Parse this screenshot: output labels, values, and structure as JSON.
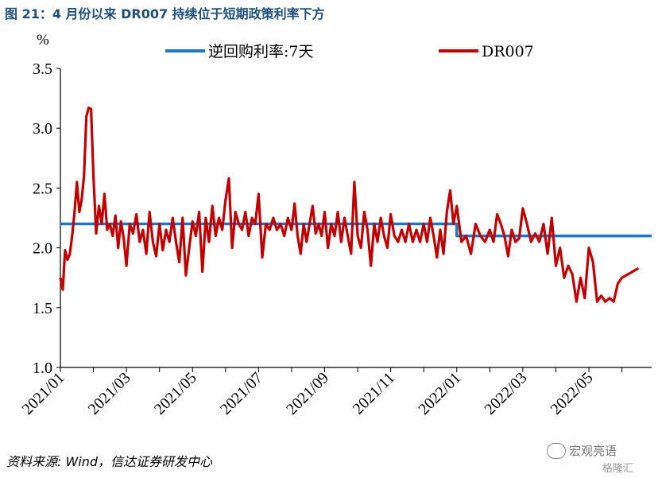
{
  "title": "图 21：4 月份以来 DR007 持续位于短期政策利率下方",
  "source": "资料来源: Wind，信达证券研发中心",
  "watermark": {
    "text": "宏观亮语",
    "logo": "格隆汇"
  },
  "chart_data": {
    "type": "line",
    "unit": "%",
    "ylim": [
      1.0,
      3.5
    ],
    "yticks": [
      "1.0",
      "1.5",
      "2.0",
      "2.5",
      "3.0",
      "3.5"
    ],
    "xticks": [
      "2021/01",
      "2021/03",
      "2021/05",
      "2021/07",
      "2021/09",
      "2021/11",
      "2022/01",
      "2022/03",
      "2022/05"
    ],
    "xrange": [
      "2021/01",
      "2022/06"
    ],
    "legend_position": "top",
    "grid": false,
    "series": [
      {
        "name": "逆回购利率:7天",
        "color": "#1f77c4",
        "points": [
          [
            "2021/01",
            2.2
          ],
          [
            "2022/01",
            2.2
          ],
          [
            "2022/01",
            2.1
          ],
          [
            "2022/06",
            2.1
          ]
        ]
      },
      {
        "name": "DR007",
        "color": "#c00000",
        "points": [
          [
            "2021/01",
            1.75
          ],
          [
            "2021/01",
            1.65
          ],
          [
            "2021/01",
            1.98
          ],
          [
            "2021/01",
            1.9
          ],
          [
            "2021/01",
            1.95
          ],
          [
            "2021/01",
            2.1
          ],
          [
            "2021/01",
            2.3
          ],
          [
            "2021/01",
            2.55
          ],
          [
            "2021/01",
            2.3
          ],
          [
            "2021/01",
            2.4
          ],
          [
            "2021/01",
            2.6
          ],
          [
            "2021/01",
            3.1
          ],
          [
            "2021/01",
            3.17
          ],
          [
            "2021/01",
            3.16
          ],
          [
            "2021/02",
            2.6
          ],
          [
            "2021/02",
            2.12
          ],
          [
            "2021/02",
            2.35
          ],
          [
            "2021/02",
            2.2
          ],
          [
            "2021/02",
            2.45
          ],
          [
            "2021/02",
            2.15
          ],
          [
            "2021/02",
            2.2
          ],
          [
            "2021/02",
            2.1
          ],
          [
            "2021/02",
            2.27
          ],
          [
            "2021/02",
            2.0
          ],
          [
            "2021/02",
            2.22
          ],
          [
            "2021/02",
            2.08
          ],
          [
            "2021/03",
            1.85
          ],
          [
            "2021/03",
            2.2
          ],
          [
            "2021/03",
            2.12
          ],
          [
            "2021/03",
            2.28
          ],
          [
            "2021/03",
            2.05
          ],
          [
            "2021/03",
            2.15
          ],
          [
            "2021/03",
            1.95
          ],
          [
            "2021/03",
            2.3
          ],
          [
            "2021/03",
            2.05
          ],
          [
            "2021/03",
            1.93
          ],
          [
            "2021/04",
            2.2
          ],
          [
            "2021/04",
            1.98
          ],
          [
            "2021/04",
            2.15
          ],
          [
            "2021/04",
            2.05
          ],
          [
            "2021/04",
            2.25
          ],
          [
            "2021/04",
            2.05
          ],
          [
            "2021/04",
            1.88
          ],
          [
            "2021/04",
            2.25
          ],
          [
            "2021/04",
            1.77
          ],
          [
            "2021/04",
            2.0
          ],
          [
            "2021/05",
            2.22
          ],
          [
            "2021/05",
            2.1
          ],
          [
            "2021/05",
            2.3
          ],
          [
            "2021/05",
            1.8
          ],
          [
            "2021/05",
            2.25
          ],
          [
            "2021/05",
            2.05
          ],
          [
            "2021/05",
            2.35
          ],
          [
            "2021/05",
            2.1
          ],
          [
            "2021/05",
            2.25
          ],
          [
            "2021/05",
            2.15
          ],
          [
            "2021/06",
            2.4
          ],
          [
            "2021/06",
            2.58
          ],
          [
            "2021/06",
            2.0
          ],
          [
            "2021/06",
            2.3
          ],
          [
            "2021/06",
            2.2
          ],
          [
            "2021/06",
            2.15
          ],
          [
            "2021/06",
            2.3
          ],
          [
            "2021/06",
            2.1
          ],
          [
            "2021/06",
            2.25
          ],
          [
            "2021/06",
            2.2
          ],
          [
            "2021/07",
            2.45
          ],
          [
            "2021/07",
            1.92
          ],
          [
            "2021/07",
            2.2
          ],
          [
            "2021/07",
            2.15
          ],
          [
            "2021/07",
            2.25
          ],
          [
            "2021/07",
            2.15
          ],
          [
            "2021/07",
            2.2
          ],
          [
            "2021/07",
            2.1
          ],
          [
            "2021/07",
            2.25
          ],
          [
            "2021/08",
            2.15
          ],
          [
            "2021/08",
            2.37
          ],
          [
            "2021/08",
            2.1
          ],
          [
            "2021/08",
            1.95
          ],
          [
            "2021/08",
            2.2
          ],
          [
            "2021/08",
            2.05
          ],
          [
            "2021/08",
            2.2
          ],
          [
            "2021/08",
            2.35
          ],
          [
            "2021/08",
            2.12
          ],
          [
            "2021/08",
            2.2
          ],
          [
            "2021/08",
            2.1
          ],
          [
            "2021/09",
            2.3
          ],
          [
            "2021/09",
            2.0
          ],
          [
            "2021/09",
            2.2
          ],
          [
            "2021/09",
            2.1
          ],
          [
            "2021/09",
            2.3
          ],
          [
            "2021/09",
            2.05
          ],
          [
            "2021/09",
            2.25
          ],
          [
            "2021/09",
            2.1
          ],
          [
            "2021/09",
            1.95
          ],
          [
            "2021/09",
            2.55
          ],
          [
            "2021/10",
            2.1
          ],
          [
            "2021/10",
            2.0
          ],
          [
            "2021/10",
            2.3
          ],
          [
            "2021/10",
            2.15
          ],
          [
            "2021/10",
            1.85
          ],
          [
            "2021/10",
            2.2
          ],
          [
            "2021/10",
            2.05
          ],
          [
            "2021/10",
            2.25
          ],
          [
            "2021/10",
            2.1
          ],
          [
            "2021/10",
            2.0
          ],
          [
            "2021/11",
            2.28
          ],
          [
            "2021/11",
            2.1
          ],
          [
            "2021/11",
            2.05
          ],
          [
            "2021/11",
            2.15
          ],
          [
            "2021/11",
            2.05
          ],
          [
            "2021/11",
            2.2
          ],
          [
            "2021/11",
            2.05
          ],
          [
            "2021/11",
            2.15
          ],
          [
            "2021/11",
            2.05
          ],
          [
            "2021/12",
            2.2
          ],
          [
            "2021/12",
            2.05
          ],
          [
            "2021/12",
            2.25
          ],
          [
            "2021/12",
            2.1
          ],
          [
            "2021/12",
            1.92
          ],
          [
            "2021/12",
            2.15
          ],
          [
            "2021/12",
            1.95
          ],
          [
            "2021/12",
            2.3
          ],
          [
            "2021/12",
            2.48
          ],
          [
            "2021/12",
            2.2
          ],
          [
            "2022/01",
            2.35
          ],
          [
            "2022/01",
            2.05
          ],
          [
            "2022/01",
            2.1
          ],
          [
            "2022/01",
            1.95
          ],
          [
            "2022/01",
            2.2
          ],
          [
            "2022/01",
            2.1
          ],
          [
            "2022/01",
            2.05
          ],
          [
            "2022/02",
            2.15
          ],
          [
            "2022/02",
            2.05
          ],
          [
            "2022/02",
            2.28
          ],
          [
            "2022/02",
            2.2
          ],
          [
            "2022/02",
            2.1
          ],
          [
            "2022/02",
            1.93
          ],
          [
            "2022/02",
            2.15
          ],
          [
            "2022/02",
            2.05
          ],
          [
            "2022/02",
            2.08
          ],
          [
            "2022/03",
            2.33
          ],
          [
            "2022/03",
            2.2
          ],
          [
            "2022/03",
            2.05
          ],
          [
            "2022/03",
            2.12
          ],
          [
            "2022/03",
            2.05
          ],
          [
            "2022/03",
            2.2
          ],
          [
            "2022/03",
            1.95
          ],
          [
            "2022/03",
            2.25
          ],
          [
            "2022/04",
            1.85
          ],
          [
            "2022/04",
            2.0
          ],
          [
            "2022/04",
            1.75
          ],
          [
            "2022/04",
            1.85
          ],
          [
            "2022/04",
            1.78
          ],
          [
            "2022/04",
            1.55
          ],
          [
            "2022/04",
            1.75
          ],
          [
            "2022/04",
            1.58
          ],
          [
            "2022/05",
            2.0
          ],
          [
            "2022/05",
            1.88
          ],
          [
            "2022/05",
            1.55
          ],
          [
            "2022/05",
            1.6
          ],
          [
            "2022/05",
            1.55
          ],
          [
            "2022/05",
            1.58
          ],
          [
            "2022/05",
            1.55
          ],
          [
            "2022/05",
            1.7
          ],
          [
            "2022/06",
            1.75
          ],
          [
            "2022/06",
            1.83
          ]
        ]
      }
    ]
  }
}
